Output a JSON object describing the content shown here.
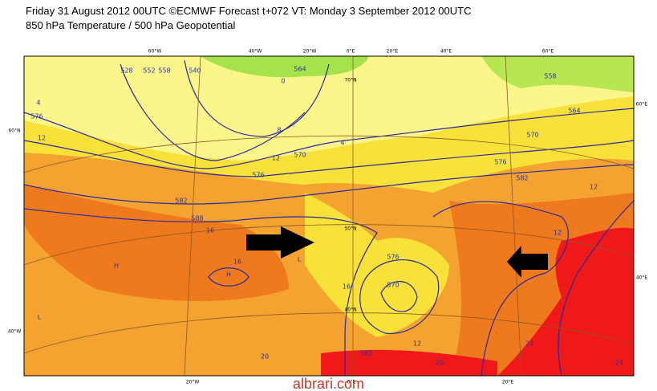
{
  "header": {
    "line1": "Friday 31 August 2012 00UTC ©ECMWF Forecast t+072 VT: Monday 3 September 2012 00UTC",
    "line2": "850 hPa Temperature / 500 hPa Geopotential"
  },
  "map": {
    "grid_labels": [
      "60°W",
      "40°W",
      "20°W",
      "0°E",
      "20°E",
      "40°E",
      "60°E",
      "20°W",
      "0°E",
      "20°E",
      "60°N",
      "40°W",
      "60°E",
      "40°E",
      "70°N",
      "50°N",
      "40°N"
    ],
    "contour_labels": [
      "528",
      "552",
      "558",
      "540",
      "564",
      "558",
      "564",
      "570",
      "576",
      "582",
      "570",
      "576",
      "582",
      "588",
      "12",
      "12",
      "16",
      "16",
      "12",
      "12",
      "12",
      "16",
      "576",
      "570",
      "582",
      "20",
      "20",
      "24",
      "24",
      "8",
      "4",
      "0",
      "4",
      "576"
    ],
    "pressure_labels": [
      "H",
      "L",
      "L",
      "H"
    ]
  },
  "watermark": "albrari.com"
}
